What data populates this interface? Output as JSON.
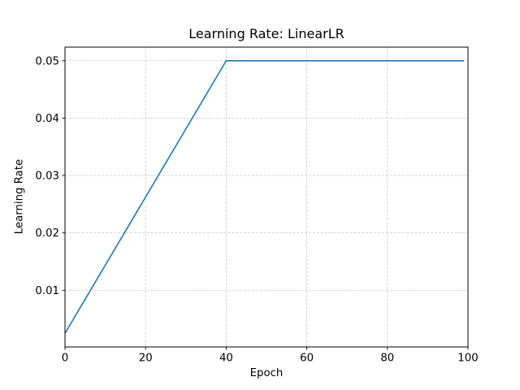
{
  "chart_data": {
    "type": "line",
    "title": "Learning Rate: LinearLR",
    "xlabel": "Epoch",
    "ylabel": "Learning Rate",
    "xlim": [
      0,
      100
    ],
    "ylim": [
      0.000125,
      0.052375
    ],
    "x_ticks": [
      {
        "value": 0,
        "label": "0"
      },
      {
        "value": 20,
        "label": "20"
      },
      {
        "value": 40,
        "label": "40"
      },
      {
        "value": 60,
        "label": "60"
      },
      {
        "value": 80,
        "label": "80"
      },
      {
        "value": 100,
        "label": "100"
      }
    ],
    "y_ticks": [
      {
        "value": 0.01,
        "label": "0.01"
      },
      {
        "value": 0.02,
        "label": "0.02"
      },
      {
        "value": 0.03,
        "label": "0.03"
      },
      {
        "value": 0.04,
        "label": "0.04"
      },
      {
        "value": 0.05,
        "label": "0.05"
      }
    ],
    "grid": true,
    "grid_style": "dashed",
    "legend": "none",
    "series": [
      {
        "name": "learning_rate",
        "color": "#1f77b4",
        "line_width": 1.6,
        "points": [
          [
            0,
            0.0025
          ],
          [
            5,
            0.0084375
          ],
          [
            10,
            0.014375
          ],
          [
            15,
            0.0203125
          ],
          [
            20,
            0.02625
          ],
          [
            25,
            0.0321875
          ],
          [
            30,
            0.038125
          ],
          [
            35,
            0.0440625
          ],
          [
            40,
            0.05
          ],
          [
            60,
            0.05
          ],
          [
            80,
            0.05
          ],
          [
            99,
            0.05
          ]
        ]
      }
    ]
  },
  "colors": {
    "background": "#ffffff",
    "grid": "#c9c9c9",
    "spine": "#000000",
    "tick": "#000000",
    "text": "#000000",
    "line": "#1f77b4"
  }
}
